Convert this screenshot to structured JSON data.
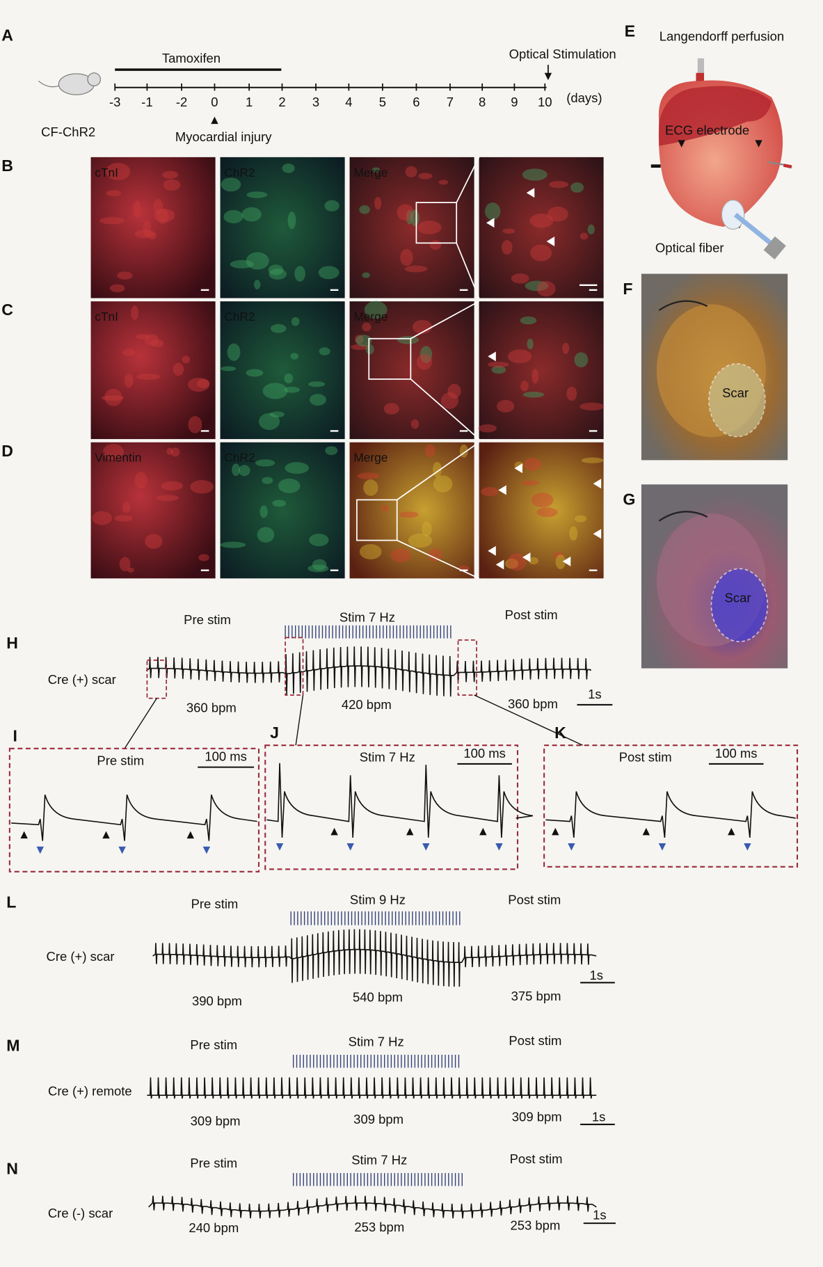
{
  "panel_A": {
    "label": "A",
    "drug": "Tamoxifen",
    "event": "Optical Stimulation",
    "ticks": [
      "-3",
      "-1",
      "-2",
      "0",
      "1",
      "2",
      "3",
      "4",
      "5",
      "6",
      "7",
      "8",
      "9",
      "10"
    ],
    "unit": "(days)",
    "mouse": "CF-ChR2",
    "injury": "Myocardial injury"
  },
  "panel_E": {
    "label": "E",
    "perfusion": "Langendorff perfusion",
    "electrode": "ECG electrode",
    "fiber": "Optical fiber"
  },
  "panel_B": {
    "label": "B",
    "images": [
      "cTnI",
      "ChR2",
      "Merge"
    ]
  },
  "panel_C": {
    "label": "C",
    "images": [
      "cTnI",
      "ChR2",
      "Merge"
    ]
  },
  "panel_D": {
    "label": "D",
    "images": [
      "Vimentin",
      "ChR2",
      "Merge"
    ]
  },
  "panel_F": {
    "label": "F",
    "scar": "Scar"
  },
  "panel_G": {
    "label": "G",
    "scar": "Scar"
  },
  "panel_H": {
    "label": "H",
    "sample": "Cre (+) scar",
    "phases": [
      "Pre stim",
      "Stim 7 Hz",
      "Post stim"
    ],
    "rates": [
      "360  bpm",
      "420  bpm",
      "360 bpm"
    ],
    "scale": "1s"
  },
  "panel_I": {
    "label": "I",
    "title": "Pre stim",
    "scale": "100 ms"
  },
  "panel_J": {
    "label": "J",
    "title": "Stim 7 Hz",
    "scale": "100 ms"
  },
  "panel_K": {
    "label": "K",
    "title": "Post stim",
    "scale": "100 ms"
  },
  "panel_L": {
    "label": "L",
    "sample": "Cre (+) scar",
    "phases": [
      "Pre stim",
      "Stim 9 Hz",
      "Post stim"
    ],
    "rates": [
      "390 bpm",
      "540 bpm",
      "375 bpm"
    ],
    "scale": "1s"
  },
  "panel_M": {
    "label": "M",
    "sample": "Cre (+)  remote",
    "phases": [
      "Pre stim",
      "Stim 7 Hz",
      "Post stim"
    ],
    "rates": [
      "309 bpm",
      "309 bpm",
      "309 bpm"
    ],
    "scale": "1s"
  },
  "panel_N": {
    "label": "N",
    "sample": "Cre (-)  scar",
    "phases": [
      "Pre stim",
      "Stim 7 Hz",
      "Post stim"
    ],
    "rates": [
      "240 bpm",
      "253 bpm",
      "253 bpm"
    ],
    "scale": "1s"
  }
}
